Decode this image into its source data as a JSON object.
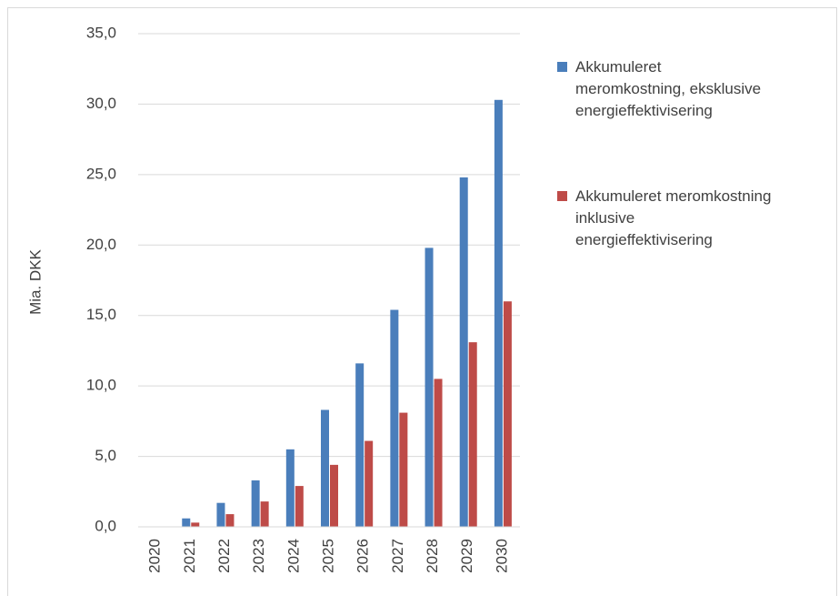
{
  "chart_data": {
    "type": "bar",
    "y_label": "Mia. DKK",
    "categories": [
      "2020",
      "2021",
      "2022",
      "2023",
      "2024",
      "2025",
      "2026",
      "2027",
      "2028",
      "2029",
      "2030"
    ],
    "series": [
      {
        "name": "Akkumuleret meromkostning, eksklusive energieffektivisering",
        "color": "#4a7ebb",
        "values": [
          0,
          0.6,
          1.7,
          3.3,
          5.5,
          8.3,
          11.6,
          15.4,
          19.8,
          24.8,
          30.3
        ]
      },
      {
        "name": "Akkumuleret meromkostning inklusive energieffektivisering",
        "color": "#be4b48",
        "values": [
          0,
          0.3,
          0.9,
          1.8,
          2.9,
          4.4,
          6.1,
          8.1,
          10.5,
          13.1,
          16.0
        ]
      }
    ],
    "ylim": [
      0,
      35
    ],
    "yticks": [
      {
        "value": 0,
        "label": "0,0"
      },
      {
        "value": 5,
        "label": "5,0"
      },
      {
        "value": 10,
        "label": "10,0"
      },
      {
        "value": 15,
        "label": "15,0"
      },
      {
        "value": 20,
        "label": "20,0"
      },
      {
        "value": 25,
        "label": "25,0"
      },
      {
        "value": 30,
        "label": "30,0"
      },
      {
        "value": 35,
        "label": "35,0"
      }
    ],
    "grid": true,
    "legend": "right"
  }
}
